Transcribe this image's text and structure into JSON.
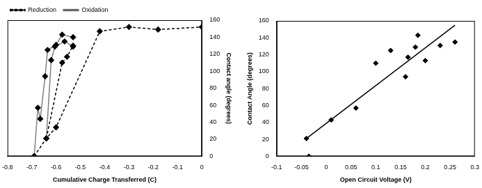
{
  "chart_data": [
    {
      "type": "line",
      "xlabel": "Cumulative Charge Transferred (C)",
      "ylabel": "Contact angle (degrees)",
      "xlim": [
        -0.8,
        0
      ],
      "xticks": [
        -0.8,
        -0.7,
        -0.6,
        -0.5,
        -0.4,
        -0.3,
        -0.2,
        -0.1,
        0
      ],
      "ylim": [
        0,
        160
      ],
      "yticks": [
        0,
        20,
        40,
        60,
        80,
        100,
        120,
        140,
        160
      ],
      "grid": false,
      "legend": "top-left",
      "series": [
        {
          "name": "Reduction",
          "color": "#000000",
          "line_style": "dashed",
          "marker": "diamond",
          "x": [
            -0.69,
            -0.64,
            -0.6,
            -0.42,
            -0.3,
            -0.18,
            0,
            -0.64,
            -0.64,
            -0.575,
            -0.555,
            -0.53
          ],
          "values": [
            0,
            21,
            34,
            147,
            152,
            149,
            152,
            null,
            21,
            110,
            117,
            130
          ]
        },
        {
          "name": "Oxidation",
          "color": "#808080",
          "line_style": "solid",
          "marker": "diamond",
          "x": [
            -0.69,
            -0.675,
            -0.665,
            -0.645,
            -0.635,
            -0.6,
            -0.575,
            -0.53,
            -0.64,
            -0.64,
            -0.62,
            -0.605,
            -0.565,
            -0.53
          ],
          "values": [
            0,
            57,
            44,
            94,
            125,
            131,
            143,
            140,
            null,
            21,
            113,
            129,
            135,
            129
          ]
        }
      ]
    },
    {
      "type": "scatter",
      "xlabel": "Open Circuit Voltage (V)",
      "ylabel": "Contact Angle (degrees)",
      "xlim": [
        -0.1,
        0.3
      ],
      "xticks": [
        -0.1,
        -0.05,
        0,
        0.05,
        0.1,
        0.15,
        0.2,
        0.25,
        0.3
      ],
      "ylim": [
        0,
        160
      ],
      "yticks": [
        0,
        20,
        40,
        60,
        80,
        100,
        120,
        140,
        160
      ],
      "grid": false,
      "series": [
        {
          "type": "scatter",
          "color": "#000000",
          "marker": "diamond",
          "x": [
            -0.04,
            -0.035,
            0.01,
            0.06,
            0.1,
            0.13,
            0.16,
            0.165,
            0.18,
            0.185,
            0.2,
            0.23,
            0.26
          ],
          "values": [
            21,
            0,
            43,
            57,
            110,
            125,
            94,
            117,
            129,
            143,
            113,
            131,
            135
          ]
        },
        {
          "type": "line",
          "color": "#000000",
          "line_style": "solid",
          "x": [
            -0.04,
            0.26
          ],
          "values": [
            21,
            155
          ]
        }
      ]
    }
  ]
}
